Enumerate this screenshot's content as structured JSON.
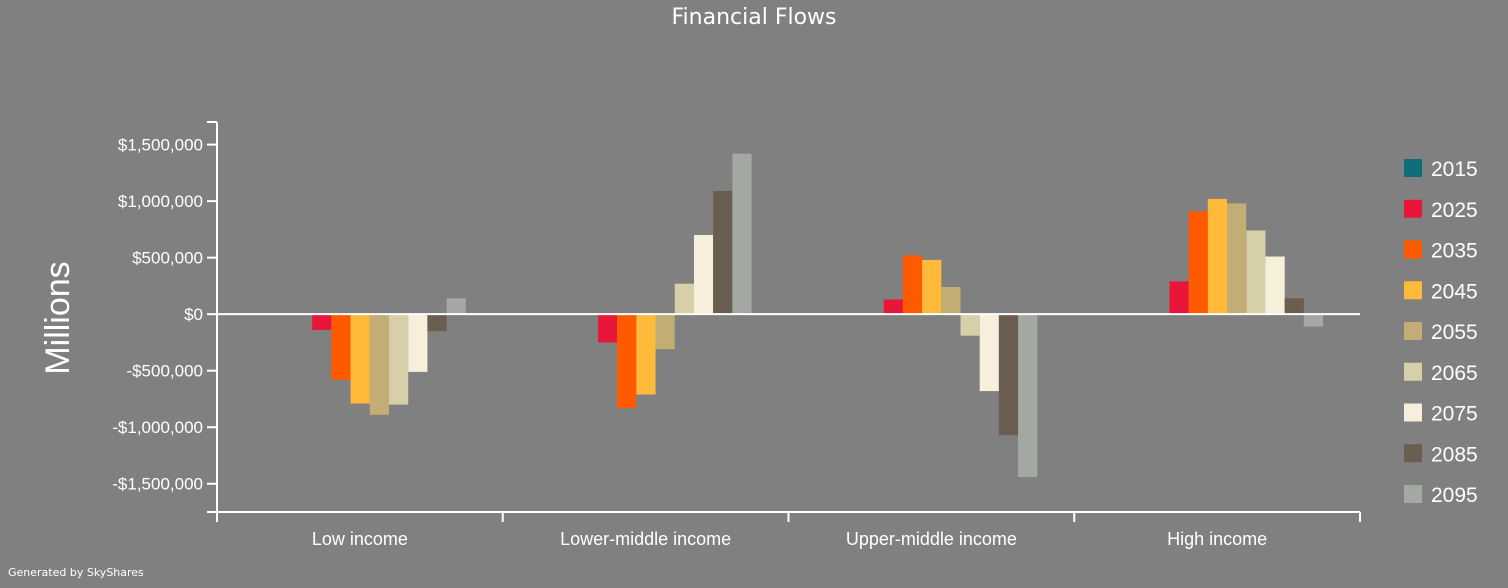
{
  "chart_data": {
    "type": "bar",
    "title": "Financial Flows",
    "ylabel": "Millions",
    "xlabel": "",
    "ylim": [
      -1750000,
      1700000
    ],
    "yticks": [
      1500000,
      1000000,
      500000,
      0,
      -500000,
      -1000000,
      -1500000
    ],
    "ytick_labels": [
      "$1,500,000",
      "$1,000,000",
      "$500,000",
      "$0",
      "-$500,000",
      "-$1,000,000",
      "-$1,500,000"
    ],
    "categories": [
      "Low income",
      "Lower-middle income",
      "Upper-middle income",
      "High income"
    ],
    "legend_position": "right",
    "grid": false,
    "series": [
      {
        "name": "2015",
        "color": "#0f6e78",
        "values": [
          0,
          0,
          0,
          0
        ]
      },
      {
        "name": "2025",
        "color": "#e8173a",
        "values": [
          -140000,
          -250000,
          130000,
          290000
        ]
      },
      {
        "name": "2035",
        "color": "#ff5a00",
        "values": [
          -580000,
          -830000,
          520000,
          910000
        ]
      },
      {
        "name": "2045",
        "color": "#ffba3a",
        "values": [
          -790000,
          -710000,
          480000,
          1020000
        ]
      },
      {
        "name": "2055",
        "color": "#c2ad74",
        "values": [
          -890000,
          -310000,
          240000,
          980000
        ]
      },
      {
        "name": "2065",
        "color": "#d7cfa7",
        "values": [
          -800000,
          270000,
          -190000,
          740000
        ]
      },
      {
        "name": "2075",
        "color": "#f5efdc",
        "values": [
          -510000,
          700000,
          -680000,
          510000
        ]
      },
      {
        "name": "2085",
        "color": "#6b5d50",
        "values": [
          -150000,
          1090000,
          -1070000,
          140000
        ]
      },
      {
        "name": "2095",
        "color": "#a3a8a2",
        "values": [
          140000,
          1420000,
          -1440000,
          -110000
        ]
      }
    ]
  },
  "footer": {
    "credit": "Generated by SkyShares"
  }
}
